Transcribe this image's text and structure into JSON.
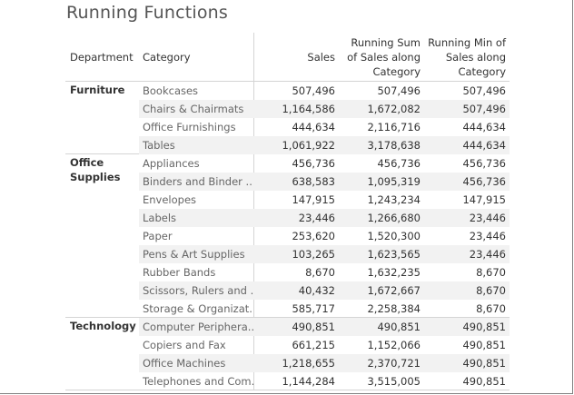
{
  "title": "Running Functions",
  "headers": {
    "department": "Department",
    "category": "Category",
    "sales": "Sales",
    "running_sum": [
      "Running Sum",
      "of Sales along",
      "Category"
    ],
    "running_min": [
      "Running Min of",
      "Sales along",
      "Category"
    ]
  },
  "groups": [
    {
      "department": [
        "Furniture"
      ],
      "rows": [
        {
          "category": "Bookcases",
          "sales": "507,496",
          "running_sum": "507,496",
          "running_min": "507,496"
        },
        {
          "category": "Chairs & Chairmats",
          "sales": "1,164,586",
          "running_sum": "1,672,082",
          "running_min": "507,496"
        },
        {
          "category": "Office Furnishings",
          "sales": "444,634",
          "running_sum": "2,116,716",
          "running_min": "444,634"
        },
        {
          "category": "Tables",
          "sales": "1,061,922",
          "running_sum": "3,178,638",
          "running_min": "444,634"
        }
      ]
    },
    {
      "department": [
        "Office",
        "Supplies"
      ],
      "rows": [
        {
          "category": "Appliances",
          "sales": "456,736",
          "running_sum": "456,736",
          "running_min": "456,736"
        },
        {
          "category": "Binders and Binder ..",
          "sales": "638,583",
          "running_sum": "1,095,319",
          "running_min": "456,736"
        },
        {
          "category": "Envelopes",
          "sales": "147,915",
          "running_sum": "1,243,234",
          "running_min": "147,915"
        },
        {
          "category": "Labels",
          "sales": "23,446",
          "running_sum": "1,266,680",
          "running_min": "23,446"
        },
        {
          "category": "Paper",
          "sales": "253,620",
          "running_sum": "1,520,300",
          "running_min": "23,446"
        },
        {
          "category": "Pens & Art Supplies",
          "sales": "103,265",
          "running_sum": "1,623,565",
          "running_min": "23,446"
        },
        {
          "category": "Rubber Bands",
          "sales": "8,670",
          "running_sum": "1,632,235",
          "running_min": "8,670"
        },
        {
          "category": "Scissors, Rulers and ..",
          "sales": "40,432",
          "running_sum": "1,672,667",
          "running_min": "8,670"
        },
        {
          "category": "Storage & Organizat..",
          "sales": "585,717",
          "running_sum": "2,258,384",
          "running_min": "8,670"
        }
      ]
    },
    {
      "department": [
        "Technology"
      ],
      "rows": [
        {
          "category": "Computer Periphera..",
          "sales": "490,851",
          "running_sum": "490,851",
          "running_min": "490,851"
        },
        {
          "category": "Copiers and Fax",
          "sales": "661,215",
          "running_sum": "1,152,066",
          "running_min": "490,851"
        },
        {
          "category": "Office Machines",
          "sales": "1,218,655",
          "running_sum": "2,370,721",
          "running_min": "490,851"
        },
        {
          "category": "Telephones and Com..",
          "sales": "1,144,284",
          "running_sum": "3,515,005",
          "running_min": "490,851"
        }
      ]
    }
  ]
}
